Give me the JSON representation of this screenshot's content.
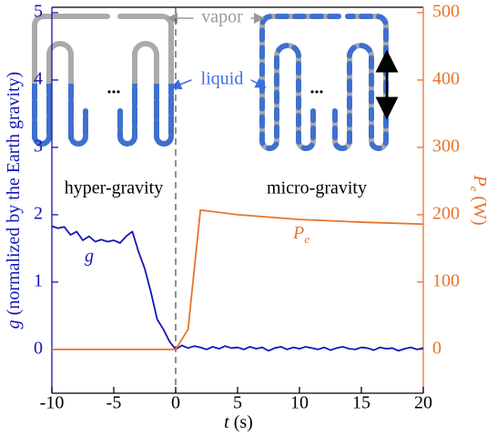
{
  "chart_data": {
    "type": "line",
    "xlabel": "t",
    "xlabel_unit": "(s)",
    "ylabel": "g",
    "ylabel_unit": "(normalized by the Earth gravity)",
    "y2label": "P",
    "y2label_sub": "e",
    "y2label_unit": "(W)",
    "xlim": [
      -10,
      20
    ],
    "xticks": [
      -10,
      -5,
      0,
      5,
      10,
      15,
      20
    ],
    "ylim": [
      -0.65,
      5.08
    ],
    "yticks": [
      0,
      1,
      2,
      3,
      4,
      5
    ],
    "y2lim": [
      -65,
      508
    ],
    "y2ticks": [
      0,
      100,
      200,
      300,
      400,
      500
    ],
    "series": [
      {
        "name": "g",
        "color": "#1515b5",
        "x": [
          -10,
          -9.5,
          -9,
          -8.5,
          -8,
          -7.5,
          -7,
          -6.5,
          -6,
          -5.5,
          -5,
          -4.5,
          -4,
          -3.5,
          -3,
          -2.5,
          -2,
          -1.5,
          -1,
          -0.5,
          0,
          0.5,
          1,
          1.5,
          2,
          2.5,
          3,
          3.5,
          4,
          4.5,
          5,
          5.5,
          6,
          6.5,
          7,
          7.5,
          8,
          8.5,
          9,
          9.5,
          10,
          10.5,
          11,
          11.5,
          12,
          12.5,
          13,
          13.5,
          14,
          14.5,
          15,
          15.5,
          16,
          16.5,
          17,
          17.5,
          18,
          18.5,
          19,
          19.5,
          20
        ],
        "values": [
          1.83,
          1.8,
          1.82,
          1.7,
          1.75,
          1.62,
          1.68,
          1.6,
          1.63,
          1.6,
          1.62,
          1.58,
          1.68,
          1.75,
          1.45,
          1.2,
          0.85,
          0.45,
          0.3,
          0.12,
          0.0,
          0.06,
          0.02,
          0.05,
          0.03,
          0.0,
          0.04,
          0.01,
          0.05,
          0.02,
          0.03,
          0.0,
          0.04,
          0.01,
          0.03,
          -0.02,
          0.02,
          0.04,
          0.0,
          0.03,
          0.01,
          0.04,
          0.02,
          0.0,
          0.03,
          -0.01,
          0.02,
          0.04,
          0.01,
          0.0,
          0.03,
          0.02,
          -0.01,
          0.03,
          0.01,
          0.02,
          -0.02,
          0.01,
          0.03,
          0.0,
          0.02
        ]
      },
      {
        "name": "P",
        "name_sub": "e",
        "color": "#e8732a",
        "axis": "y2",
        "x": [
          -10,
          0,
          1,
          2,
          5,
          10,
          15,
          20
        ],
        "values": [
          0,
          0,
          30,
          207,
          200,
          193,
          189,
          186
        ]
      }
    ],
    "annotations": {
      "vapor": "vapor",
      "liquid": "liquid",
      "dots_left": "...",
      "dots_right": "...",
      "hyper": "hyper-gravity",
      "micro": "micro-gravity"
    }
  }
}
